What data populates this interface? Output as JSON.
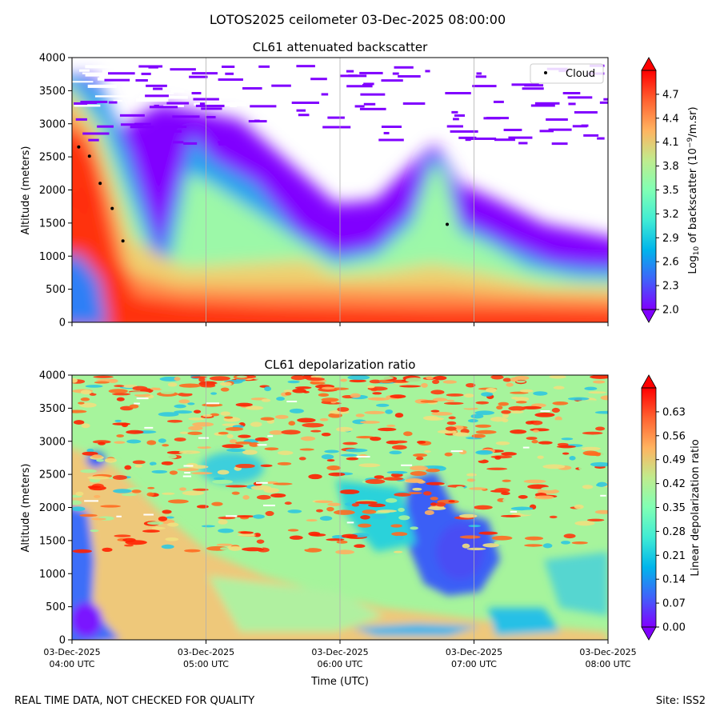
{
  "suptitle": "LOTOS2025 ceilometer 03-Dec-2025 08:00:00",
  "footer": {
    "left": "REAL TIME DATA, NOT CHECKED FOR QUALITY",
    "right": "Site: ISS2"
  },
  "chart_data": [
    {
      "type": "heatmap",
      "title": "CL61 attenuated backscatter",
      "ylabel": "Altitude (meters)",
      "ylim": [
        0,
        4000
      ],
      "y_ticks": [
        0,
        500,
        1000,
        1500,
        2000,
        2500,
        3000,
        3500,
        4000
      ],
      "x_range_hours_utc": [
        4,
        8
      ],
      "x_tick_hours": [
        4,
        5,
        6,
        7,
        8
      ],
      "grid_x": true,
      "colorbar": {
        "label_main": "Log",
        "label_sub": "10",
        "label_rest": " of backscatter (10",
        "label_sup": "−9",
        "label_end": "/m.sr)",
        "range": [
          2.0,
          5.0
        ],
        "ticks": [
          "2.0",
          "2.3",
          "2.6",
          "2.9",
          "3.2",
          "3.5",
          "3.8",
          "4.1",
          "4.4",
          "4.7"
        ],
        "tick_values": [
          2.0,
          2.3,
          2.6,
          2.9,
          3.2,
          3.5,
          3.8,
          4.1,
          4.4,
          4.7
        ],
        "colormap": "rainbow",
        "extend": "both"
      },
      "legend": {
        "label": "Cloud",
        "position": "top-right"
      },
      "cloud_base_points": [
        {
          "time_hour": 4.05,
          "altitude_m": 2650
        },
        {
          "time_hour": 4.13,
          "altitude_m": 2510
        },
        {
          "time_hour": 4.21,
          "altitude_m": 2100
        },
        {
          "time_hour": 4.3,
          "altitude_m": 1720
        },
        {
          "time_hour": 4.38,
          "altitude_m": 1230
        },
        {
          "time_hour": 6.8,
          "altitude_m": 1480
        }
      ]
    },
    {
      "type": "heatmap",
      "title": "CL61 depolarization ratio",
      "ylabel": "Altitude (meters)",
      "xlabel": "Time (UTC)",
      "ylim": [
        0,
        4000
      ],
      "y_ticks": [
        0,
        500,
        1000,
        1500,
        2000,
        2500,
        3000,
        3500,
        4000
      ],
      "x_tick_labels": [
        [
          "03-Dec-2025",
          "04:00 UTC"
        ],
        [
          "03-Dec-2025",
          "05:00 UTC"
        ],
        [
          "03-Dec-2025",
          "06:00 UTC"
        ],
        [
          "03-Dec-2025",
          "07:00 UTC"
        ],
        [
          "03-Dec-2025",
          "08:00 UTC"
        ]
      ],
      "grid_x": true,
      "colorbar": {
        "label": "Linear depolarization ratio",
        "range": [
          0.0,
          0.7
        ],
        "ticks": [
          "0.00",
          "0.07",
          "0.14",
          "0.21",
          "0.28",
          "0.35",
          "0.42",
          "0.49",
          "0.56",
          "0.63"
        ],
        "tick_values": [
          0.0,
          0.07,
          0.14,
          0.21,
          0.28,
          0.35,
          0.42,
          0.49,
          0.56,
          0.63
        ],
        "colormap": "rainbow",
        "extend": "both"
      }
    }
  ]
}
